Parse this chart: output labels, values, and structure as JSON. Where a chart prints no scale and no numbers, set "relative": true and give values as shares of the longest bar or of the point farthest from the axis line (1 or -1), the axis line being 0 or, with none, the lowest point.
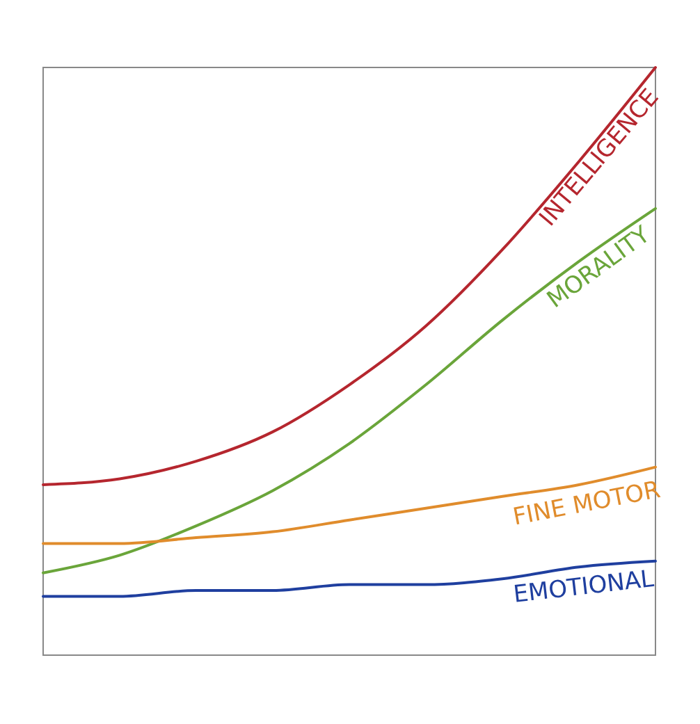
{
  "chart_data": {
    "type": "line",
    "relative": true,
    "grid": false,
    "marker": "none",
    "line_style": "solid",
    "categories": [
      null,
      null,
      null,
      null,
      null,
      null,
      null,
      null,
      null
    ],
    "series": [
      {
        "name": "INTELLIGENCE",
        "color": "#b5262e",
        "values": [
          0.29,
          0.3,
          0.33,
          0.38,
          0.46,
          0.56,
          0.69,
          0.84,
          1.0
        ]
      },
      {
        "name": "MORALITY",
        "color": "#6aa53a",
        "values": [
          0.14,
          0.17,
          0.22,
          0.28,
          0.36,
          0.46,
          0.57,
          0.67,
          0.76
        ]
      },
      {
        "name": "FINE MOTOR",
        "color": "#e08c2c",
        "values": [
          0.19,
          0.19,
          0.2,
          0.21,
          0.23,
          0.25,
          0.27,
          0.29,
          0.32
        ]
      },
      {
        "name": "EMOTIONAL",
        "color": "#1f3f9f",
        "values": [
          0.1,
          0.1,
          0.11,
          0.11,
          0.12,
          0.12,
          0.13,
          0.15,
          0.16
        ]
      }
    ]
  }
}
